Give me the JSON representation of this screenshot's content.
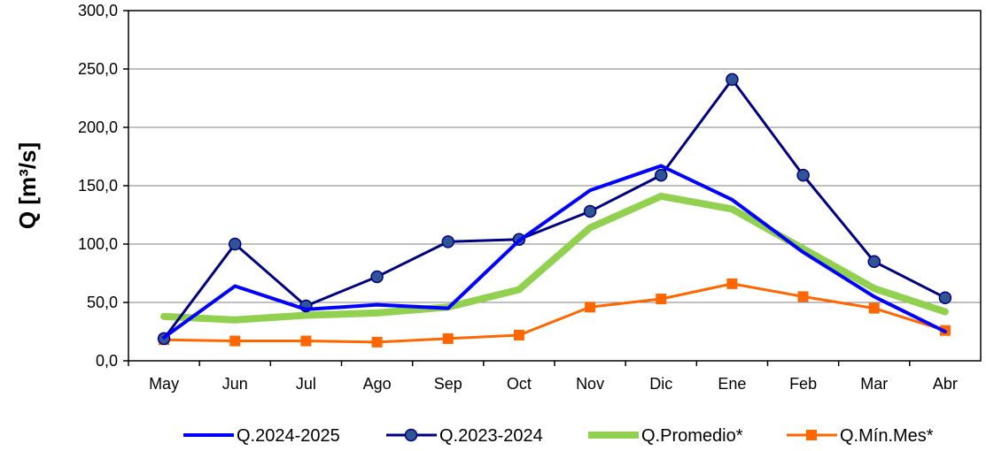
{
  "chart_data": {
    "type": "line",
    "title": "",
    "xlabel": "",
    "ylabel": "Q [m³/s]",
    "ylim": [
      0,
      300
    ],
    "ytick_step": 50,
    "grid": "horizontal",
    "legend_position": "bottom",
    "categories": [
      "May",
      "Jun",
      "Jul",
      "Ago",
      "Sep",
      "Oct",
      "Nov",
      "Dic",
      "Ene",
      "Feb",
      "Mar",
      "Abr"
    ],
    "series": [
      {
        "name": "Q.2024-2025",
        "color": "#0000ff",
        "marker": "none",
        "values": [
          20,
          64,
          44,
          48,
          45,
          103,
          146,
          167,
          138,
          93,
          55,
          25
        ]
      },
      {
        "name": "Q.2023-2024",
        "color": "#000080",
        "marker_color": "#2f5597",
        "marker": "circle",
        "values": [
          19,
          100,
          47,
          72,
          102,
          104,
          128,
          159,
          241,
          159,
          85,
          54
        ]
      },
      {
        "name": "Q.Promedio*",
        "color": "#92d050",
        "marker": "none",
        "values": [
          38,
          35,
          39,
          41,
          46,
          61,
          114,
          141,
          130,
          96,
          62,
          42
        ]
      },
      {
        "name": "Q.Mín.Mes*",
        "color": "#ff6600",
        "marker": "square",
        "values": [
          18,
          17,
          17,
          16,
          19,
          22,
          46,
          53,
          66,
          55,
          45,
          26
        ]
      }
    ]
  }
}
